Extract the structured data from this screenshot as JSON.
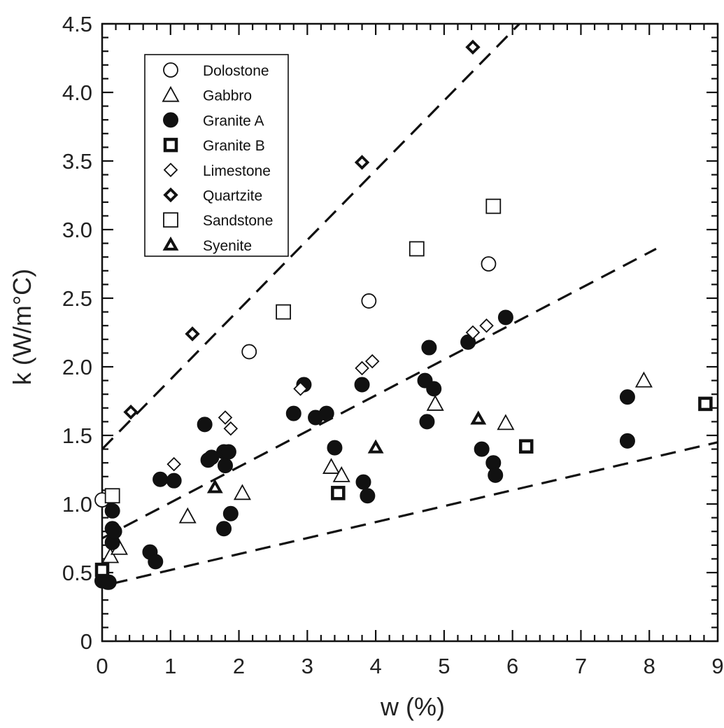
{
  "chart_data": {
    "type": "scatter",
    "title": "",
    "xlabel": "w (%)",
    "ylabel": "k (W/m°C)",
    "xlim": [
      0,
      9
    ],
    "ylim": [
      0,
      4.5
    ],
    "x_ticks": [
      "0",
      "1",
      "2",
      "3",
      "4",
      "5",
      "6",
      "7",
      "8",
      "9"
    ],
    "y_ticks": [
      "0",
      "0.5",
      "1.0",
      "1.5",
      "2.0",
      "2.5",
      "3.0",
      "3.5",
      "4.0",
      "4.5"
    ],
    "legend_position": "top-left",
    "series": [
      {
        "name": "Dolostone",
        "marker": "circle-open",
        "x": [
          0.0,
          2.15,
          3.9,
          5.65
        ],
        "y": [
          1.03,
          2.11,
          2.48,
          2.75
        ]
      },
      {
        "name": "Gabbro",
        "marker": "triangle-open",
        "x": [
          0.12,
          0.25,
          1.25,
          2.05,
          3.35,
          3.5,
          4.87,
          5.9,
          7.92
        ],
        "y": [
          0.62,
          0.68,
          0.91,
          1.08,
          1.27,
          1.21,
          1.73,
          1.59,
          1.9
        ]
      },
      {
        "name": "Granite A",
        "marker": "circle-filled",
        "x": [
          0.0,
          0.08,
          0.1,
          0.15,
          0.15,
          0.15,
          0.18,
          0.7,
          0.78,
          0.85,
          1.05,
          1.5,
          1.55,
          1.6,
          1.78,
          1.8,
          1.85,
          1.88,
          1.78,
          2.8,
          2.95,
          3.12,
          3.28,
          3.4,
          3.8,
          3.82,
          3.88,
          4.72,
          4.78,
          4.85,
          4.75,
          5.35,
          5.55,
          5.72,
          5.75,
          5.9,
          7.68,
          7.68
        ],
        "y": [
          0.44,
          0.43,
          0.43,
          0.72,
          0.82,
          0.95,
          0.8,
          0.65,
          0.58,
          1.18,
          1.17,
          1.58,
          1.32,
          1.34,
          1.38,
          1.28,
          1.38,
          0.93,
          0.82,
          1.66,
          1.87,
          1.63,
          1.66,
          1.41,
          1.87,
          1.16,
          1.06,
          1.9,
          2.14,
          1.84,
          1.6,
          2.18,
          1.4,
          1.3,
          1.21,
          2.36,
          1.78,
          1.46
        ]
      },
      {
        "name": "Granite B",
        "marker": "square-bold",
        "x": [
          0.0,
          3.45,
          6.2,
          8.82
        ],
        "y": [
          0.52,
          1.08,
          1.42,
          1.73
        ]
      },
      {
        "name": "Limestone",
        "marker": "diamond-open",
        "x": [
          1.05,
          1.8,
          1.88,
          2.9,
          3.8,
          3.95,
          5.42,
          5.62
        ],
        "y": [
          1.29,
          1.63,
          1.55,
          1.84,
          1.99,
          2.04,
          2.25,
          2.3
        ]
      },
      {
        "name": "Quartzite",
        "marker": "diamond-bold",
        "x": [
          0.42,
          1.32,
          3.8,
          5.42
        ],
        "y": [
          1.67,
          2.24,
          3.49,
          4.33
        ]
      },
      {
        "name": "Sandstone",
        "marker": "square-open",
        "x": [
          0.15,
          2.65,
          4.6,
          5.72
        ],
        "y": [
          1.06,
          2.4,
          2.86,
          3.17
        ]
      },
      {
        "name": "Syenite",
        "marker": "triangle-filled",
        "x": [
          1.65,
          4.0,
          5.5
        ],
        "y": [
          1.12,
          1.41,
          1.62
        ]
      }
    ],
    "trend_lines": [
      {
        "style": "dashed",
        "x": [
          0.0,
          6.2
        ],
        "y": [
          1.4,
          4.55
        ]
      },
      {
        "style": "dashed",
        "x": [
          0.0,
          8.1
        ],
        "y": [
          0.75,
          2.86
        ]
      },
      {
        "style": "dashed",
        "x": [
          0.15,
          9.0
        ],
        "y": [
          0.42,
          1.45
        ]
      }
    ]
  }
}
